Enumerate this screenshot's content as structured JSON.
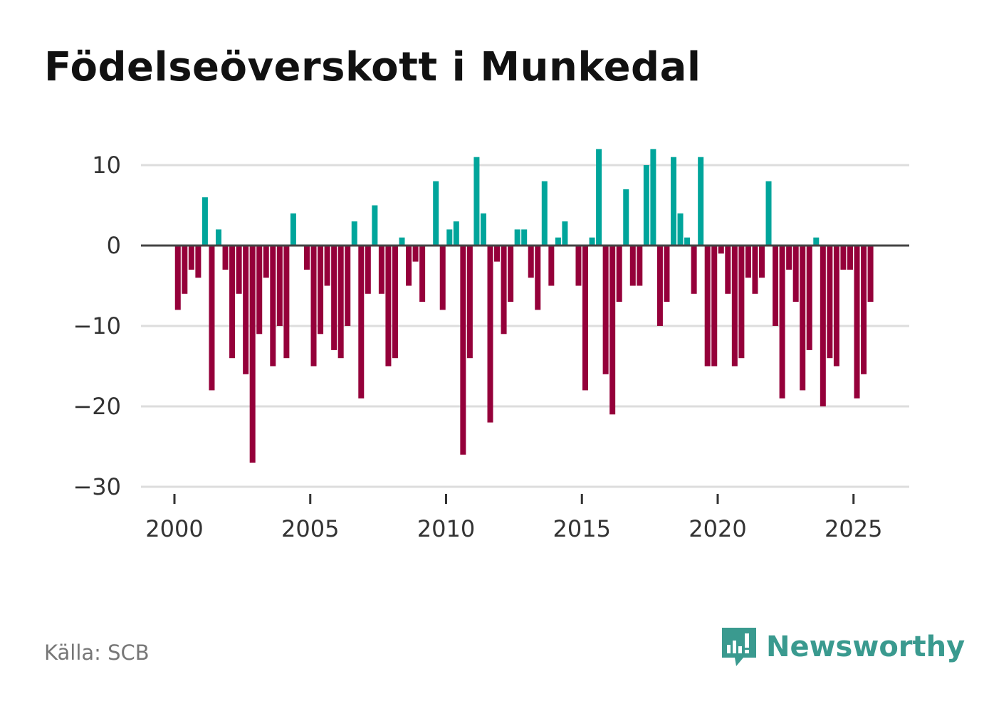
{
  "title": "Födelseöverskott i Munkedal",
  "source": "Källa: SCB",
  "logo_text": "Newsworthy",
  "colors": {
    "positive": "#00a59b",
    "negative": "#95003a",
    "zero_line": "#444444",
    "grid": "#dddddd",
    "logo": "#3a9a8f"
  },
  "chart_data": {
    "type": "bar",
    "title": "Födelseöverskott i Munkedal",
    "frequency": "quarterly",
    "x_start": 2000,
    "x_step": 0.25,
    "values": [
      -8,
      -6,
      -3,
      -4,
      6,
      -18,
      2,
      -3,
      -14,
      -6,
      -16,
      -27,
      -11,
      -4,
      -15,
      -10,
      -14,
      4,
      0,
      -3,
      -15,
      -11,
      -5,
      -13,
      -14,
      -10,
      3,
      -19,
      -6,
      5,
      -6,
      -15,
      -14,
      1,
      -5,
      -2,
      -7,
      0,
      8,
      -8,
      2,
      3,
      -26,
      -14,
      11,
      4,
      -22,
      -2,
      -11,
      -7,
      2,
      2,
      -4,
      -8,
      8,
      -5,
      1,
      3,
      0,
      -5,
      -18,
      1,
      12,
      -16,
      -21,
      -7,
      7,
      -5,
      -5,
      10,
      12,
      -10,
      -7,
      11,
      4,
      1,
      -6,
      11,
      -15,
      -15,
      -1,
      -6,
      -15,
      -14,
      -4,
      -6,
      -4,
      8,
      -10,
      -19,
      -3,
      -7,
      -18,
      -13,
      1,
      -20,
      -14,
      -15,
      -3,
      -3,
      -19,
      -16,
      -7
    ],
    "xlabel": "",
    "ylabel": "",
    "xticks": [
      "2000",
      "2005",
      "2010",
      "2015",
      "2020",
      "2025"
    ],
    "yticks": [
      "10",
      "0",
      "−10",
      "−20",
      "−30"
    ],
    "ylim": [
      -30,
      12
    ],
    "xlim": [
      1999.3,
      2027.4
    ],
    "grid": true
  }
}
